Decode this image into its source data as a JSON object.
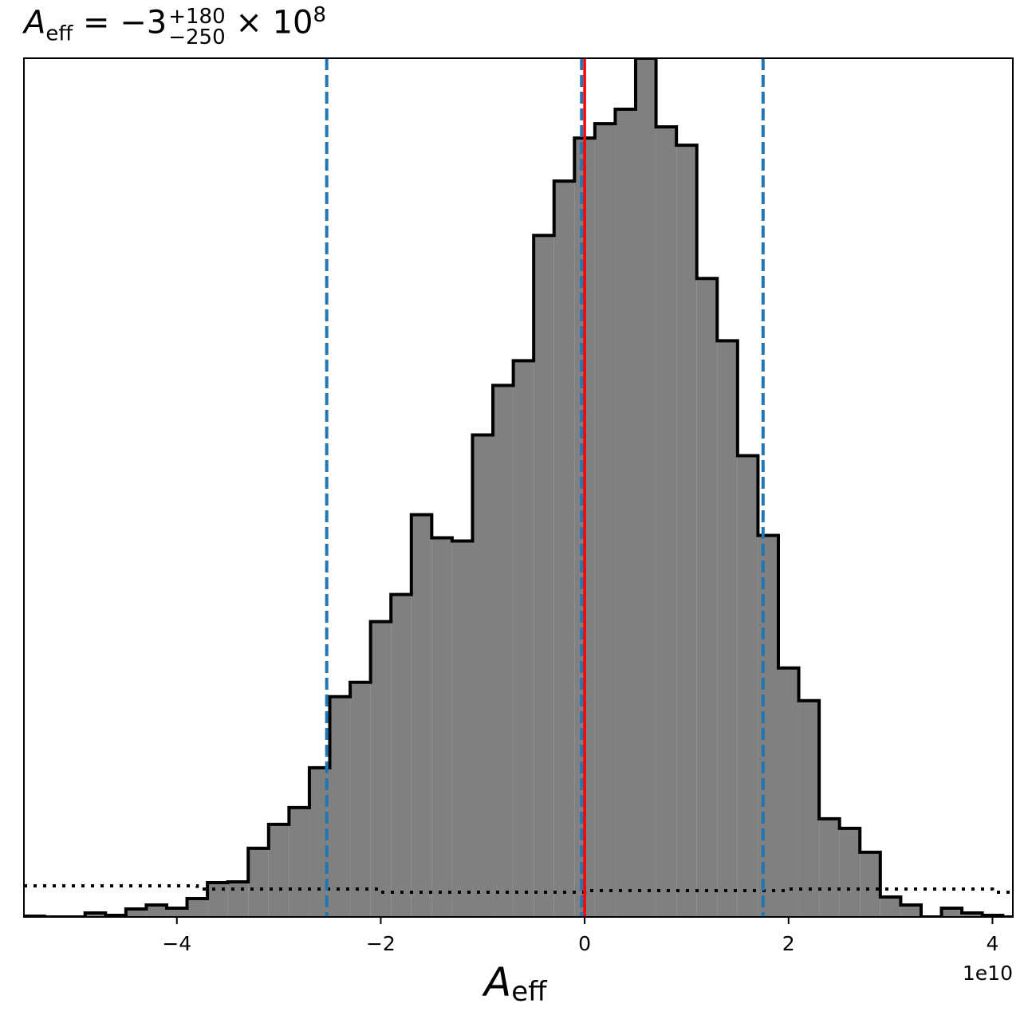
{
  "title": {
    "symbol": "A",
    "subscript": "eff",
    "equals": "= −3",
    "sup": "+180",
    "sub": "−250",
    "times": "× 10",
    "exponent": "8"
  },
  "colors": {
    "hist_fill": "#808080",
    "hist_edge": "#000000",
    "quantile_line": "#1f77b4",
    "truth_line": "#ff0000",
    "prior_line": "#000000"
  },
  "chart_data": {
    "type": "bar",
    "histogram": true,
    "xlabel_symbol": "A",
    "xlabel_subscript": "eff",
    "x_offset_label": "1e10",
    "xlim": [
      -5.5,
      4.2
    ],
    "ylim": [
      0,
      1076
    ],
    "x_ticks": [
      -4,
      -2,
      0,
      2,
      4
    ],
    "x_tick_labels": [
      "−4",
      "−2",
      "0",
      "2",
      "4"
    ],
    "y_ticks_shown": false,
    "grid": false,
    "bin_edges": [
      -5.5,
      -5.3,
      -5.1,
      -4.9,
      -4.7,
      -4.5,
      -4.3,
      -4.1,
      -3.9,
      -3.7,
      -3.5,
      -3.3,
      -3.1,
      -2.9,
      -2.7,
      -2.5,
      -2.3,
      -2.1,
      -1.9,
      -1.7,
      -1.5,
      -1.3,
      -1.1,
      -0.9,
      -0.7,
      -0.5,
      -0.3,
      -0.1,
      0.1,
      0.3,
      0.5,
      0.7,
      0.9,
      1.1,
      1.3,
      1.5,
      1.7,
      1.9,
      2.1,
      2.3,
      2.5,
      2.7,
      2.9,
      3.1,
      3.3,
      3.5,
      3.7,
      3.9,
      4.1,
      4.2
    ],
    "counts": [
      1,
      0,
      0,
      5,
      2,
      10,
      15,
      11,
      23,
      43,
      44,
      86,
      116,
      137,
      187,
      276,
      294,
      370,
      404,
      504,
      475,
      471,
      604,
      666,
      697,
      854,
      922,
      976,
      994,
      1012,
      1076,
      990,
      967,
      800,
      722,
      578,
      478,
      312,
      271,
      123,
      111,
      81,
      25,
      15,
      0,
      11,
      5,
      2,
      0
    ],
    "quantiles": [
      -2.53,
      -0.03,
      1.75
    ],
    "truth_value": 0.0,
    "prior_dotted": {
      "x": [
        -5.5,
        -3.8,
        -3.8,
        -2.0,
        -2.0,
        0.0,
        0.0,
        2.0,
        2.0,
        4.0,
        4.0,
        4.2
      ],
      "y": [
        39,
        39,
        35,
        35,
        31,
        31,
        33,
        33,
        35,
        35,
        31,
        31
      ]
    }
  }
}
